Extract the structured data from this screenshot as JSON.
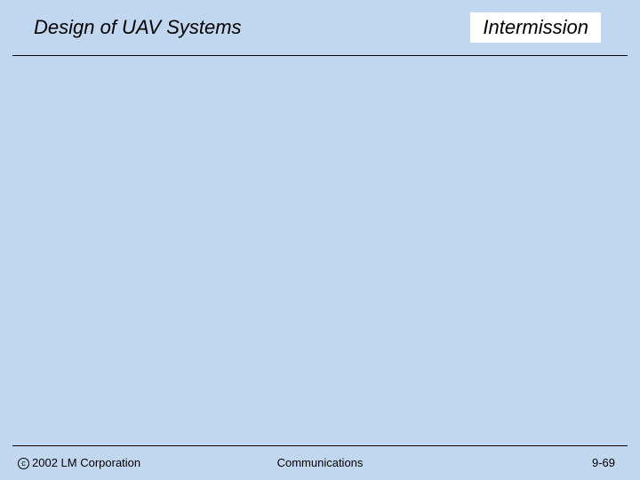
{
  "slide": {
    "title": "Design of UAV Systems",
    "status_label": "Intermission",
    "background_color": "#c1d7ef",
    "status_bg_color": "#ffffff",
    "divider_color": "#000000",
    "text_color": "#000000",
    "title_fontsize": 22,
    "footer_fontsize": 13
  },
  "footer": {
    "copyright_symbol": "c",
    "copyright_text": "2002 LM Corporation",
    "center_text": "Communications",
    "page_number": "9-69"
  }
}
